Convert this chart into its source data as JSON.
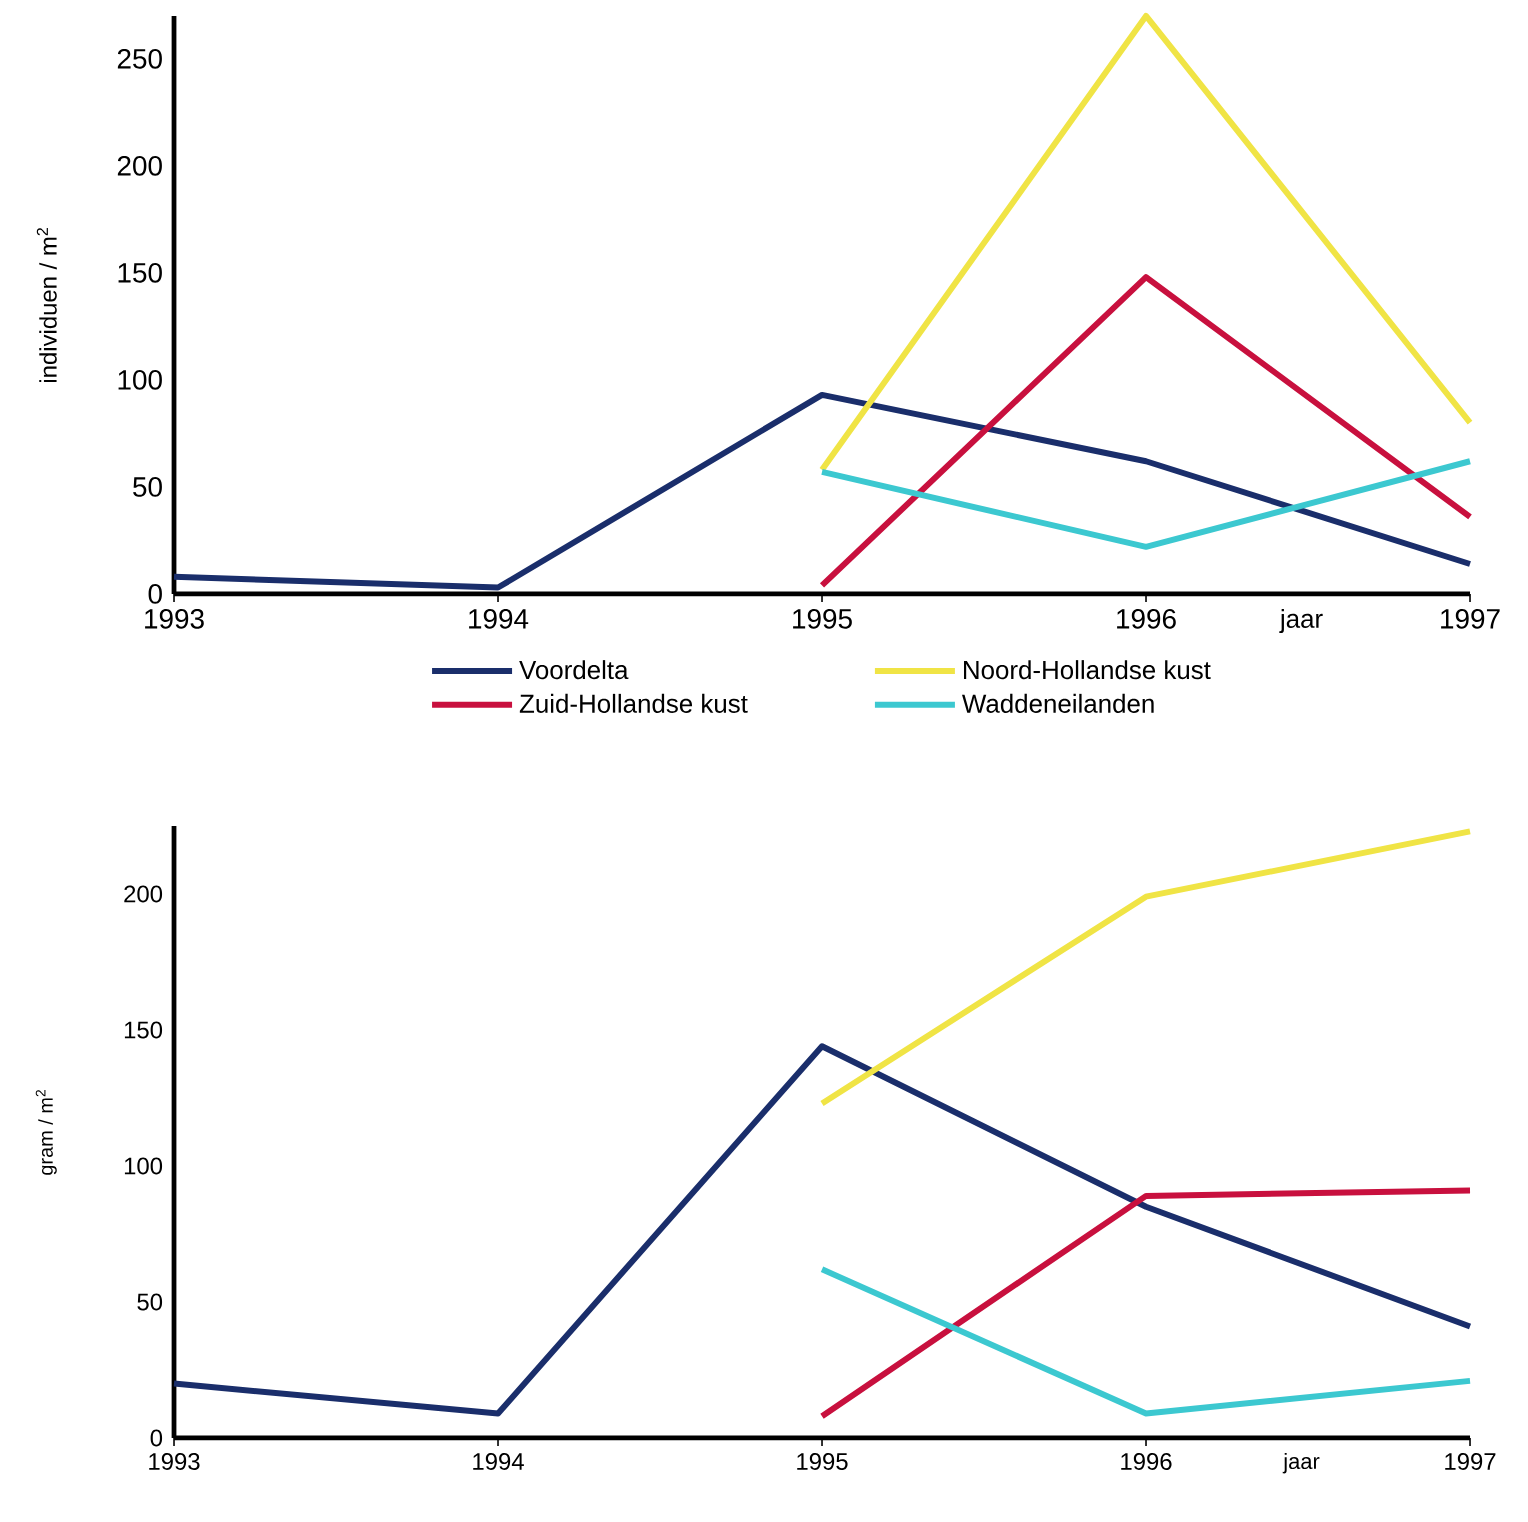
{
  "chart_data": [
    {
      "type": "line",
      "ylabel": "individuen / m$^{2}$",
      "xlabel": "jaar",
      "x": [
        1993,
        1994,
        1995,
        1996,
        1997
      ],
      "xlim": [
        1993,
        1997
      ],
      "xticks": [
        1993,
        1994,
        1995,
        1996,
        1997
      ],
      "ylim": [
        0,
        270
      ],
      "yticks": [
        0,
        50,
        100,
        150,
        200,
        250
      ],
      "grid": false,
      "legend": "bottom",
      "series": [
        {
          "name": "Voordelta",
          "color": "#1a2e6b",
          "values": [
            8,
            3,
            93,
            62,
            14
          ]
        },
        {
          "name": "Zuid-Hollandse kust",
          "color": "#c8103e",
          "values": [
            null,
            null,
            4,
            148,
            36
          ]
        },
        {
          "name": "Noord-Hollandse kust",
          "color": "#f0e445",
          "values": [
            null,
            null,
            58,
            270,
            80
          ]
        },
        {
          "name": "Waddeneilanden",
          "color": "#3cc8d0",
          "values": [
            null,
            null,
            57,
            22,
            62
          ]
        }
      ]
    },
    {
      "type": "line",
      "ylabel": "gram / m$^{2}$",
      "xlabel": "jaar",
      "x": [
        1993,
        1994,
        1995,
        1996,
        1997
      ],
      "xlim": [
        1993,
        1997
      ],
      "xticks": [
        1993,
        1994,
        1995,
        1996,
        1997
      ],
      "ylim": [
        0,
        225
      ],
      "yticks": [
        0,
        50,
        100,
        150,
        200
      ],
      "grid": false,
      "series": [
        {
          "color": "#1a2e6b",
          "values": [
            20,
            9,
            144,
            85,
            41
          ]
        },
        {
          "color": "#c8103e",
          "values": [
            null,
            null,
            8,
            89,
            91
          ]
        },
        {
          "color": "#f0e445",
          "values": [
            null,
            null,
            123,
            199,
            223
          ]
        },
        {
          "color": "#3cc8d0",
          "values": [
            null,
            null,
            62,
            9,
            21
          ]
        }
      ]
    }
  ]
}
